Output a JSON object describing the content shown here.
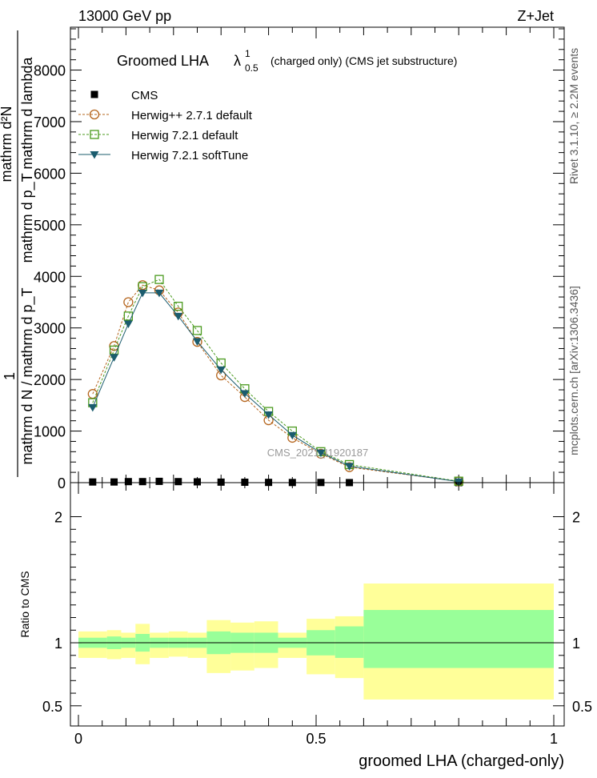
{
  "header": {
    "left": "13000 GeV pp",
    "right": "Z+Jet"
  },
  "side_labels": {
    "rivet": "Rivet 3.1.10, ≥ 2.2M events",
    "mcplots": "mcplots.cern.ch [arXiv:1306.3436]"
  },
  "watermark": "CMS_2021_I1920187",
  "chart_data": [
    {
      "type": "line",
      "title": "Groomed LHA",
      "title_symbol": "λ",
      "title_sup": "1",
      "title_sub": "0.5",
      "subtitle": "(charged only) (CMS jet substructure)",
      "ylabel_top": "mathrm d²N",
      "ylabel_bottom": "mathrm d p_T mathrm d lambda",
      "ylabel_prefix": "1",
      "ylabel_denominator_top": "mathrm d N / mathrm d p_T",
      "xlim": [
        0,
        1
      ],
      "ylim": [
        0,
        8800
      ],
      "yticks": [
        0,
        1000,
        2000,
        3000,
        4000,
        5000,
        6000,
        7000,
        8000
      ],
      "legend_position": "top-left",
      "series": [
        {
          "name": "CMS",
          "color": "#000000",
          "marker": "square-filled",
          "x": [
            0.03,
            0.075,
            0.105,
            0.135,
            0.17,
            0.21,
            0.25,
            0.3,
            0.35,
            0.4,
            0.45,
            0.51,
            0.57,
            0.8
          ],
          "y": [
            13,
            13,
            20,
            20,
            25,
            20,
            16,
            10,
            8,
            5,
            3,
            3,
            1,
            0
          ]
        },
        {
          "name": "Herwig++ 2.7.1 default",
          "color": "#b5651d",
          "marker": "circle-open",
          "dash": true,
          "x": [
            0.03,
            0.075,
            0.105,
            0.135,
            0.17,
            0.21,
            0.25,
            0.3,
            0.35,
            0.4,
            0.45,
            0.51,
            0.57,
            0.8
          ],
          "y": [
            1720,
            2650,
            3500,
            3830,
            3730,
            3300,
            2730,
            2080,
            1660,
            1210,
            870,
            560,
            300,
            25
          ]
        },
        {
          "name": "Herwig 7.2.1 default",
          "color": "#4a9a1e",
          "marker": "square-open",
          "dash": true,
          "x": [
            0.03,
            0.075,
            0.105,
            0.135,
            0.17,
            0.21,
            0.25,
            0.3,
            0.35,
            0.4,
            0.45,
            0.51,
            0.57,
            0.8
          ],
          "y": [
            1550,
            2570,
            3230,
            3800,
            3940,
            3420,
            2950,
            2320,
            1820,
            1380,
            1000,
            600,
            350,
            28
          ]
        },
        {
          "name": "Herwig 7.2.1 softTune",
          "color": "#1b5c6e",
          "marker": "triangle-down-filled",
          "dash": false,
          "x": [
            0.03,
            0.075,
            0.105,
            0.135,
            0.17,
            0.21,
            0.25,
            0.3,
            0.35,
            0.4,
            0.45,
            0.51,
            0.57,
            0.8
          ],
          "y": [
            1460,
            2430,
            3080,
            3680,
            3680,
            3230,
            2740,
            2190,
            1730,
            1320,
            920,
            580,
            320,
            20
          ]
        }
      ]
    },
    {
      "type": "area",
      "ylabel": "Ratio to CMS",
      "xlabel": "groomed LHA (charged-only)",
      "xlim": [
        0,
        1
      ],
      "ylim": [
        0.34,
        2.27
      ],
      "yticks": [
        0.5,
        1,
        2
      ],
      "xticks": [
        0,
        0.5,
        1
      ],
      "xtick_labels": [
        "0",
        "0.5",
        "1"
      ],
      "bands": {
        "colors": {
          "outer": "#ffff99",
          "inner": "#99ff99"
        },
        "bins": [
          {
            "x0": 0.0,
            "x1": 0.06,
            "outer": [
              0.88,
              1.09
            ],
            "inner": [
              0.96,
              1.04
            ]
          },
          {
            "x0": 0.06,
            "x1": 0.09,
            "outer": [
              0.87,
              1.1
            ],
            "inner": [
              0.95,
              1.05
            ]
          },
          {
            "x0": 0.09,
            "x1": 0.12,
            "outer": [
              0.88,
              1.08
            ],
            "inner": [
              0.96,
              1.04
            ]
          },
          {
            "x0": 0.12,
            "x1": 0.15,
            "outer": [
              0.83,
              1.15
            ],
            "inner": [
              0.93,
              1.07
            ]
          },
          {
            "x0": 0.15,
            "x1": 0.19,
            "outer": [
              0.88,
              1.08
            ],
            "inner": [
              0.96,
              1.04
            ]
          },
          {
            "x0": 0.19,
            "x1": 0.23,
            "outer": [
              0.89,
              1.09
            ],
            "inner": [
              0.96,
              1.04
            ]
          },
          {
            "x0": 0.23,
            "x1": 0.27,
            "outer": [
              0.88,
              1.08
            ],
            "inner": [
              0.96,
              1.04
            ]
          },
          {
            "x0": 0.27,
            "x1": 0.32,
            "outer": [
              0.76,
              1.18
            ],
            "inner": [
              0.91,
              1.09
            ]
          },
          {
            "x0": 0.32,
            "x1": 0.37,
            "outer": [
              0.78,
              1.16
            ],
            "inner": [
              0.92,
              1.08
            ]
          },
          {
            "x0": 0.37,
            "x1": 0.42,
            "outer": [
              0.8,
              1.17
            ],
            "inner": [
              0.92,
              1.08
            ]
          },
          {
            "x0": 0.42,
            "x1": 0.48,
            "outer": [
              0.88,
              1.08
            ],
            "inner": [
              0.96,
              1.04
            ]
          },
          {
            "x0": 0.48,
            "x1": 0.54,
            "outer": [
              0.75,
              1.19
            ],
            "inner": [
              0.9,
              1.1
            ]
          },
          {
            "x0": 0.54,
            "x1": 0.6,
            "outer": [
              0.72,
              1.21
            ],
            "inner": [
              0.88,
              1.13
            ]
          },
          {
            "x0": 0.6,
            "x1": 1.0,
            "outer": [
              0.55,
              1.47
            ],
            "inner": [
              0.8,
              1.26
            ]
          }
        ]
      }
    }
  ]
}
